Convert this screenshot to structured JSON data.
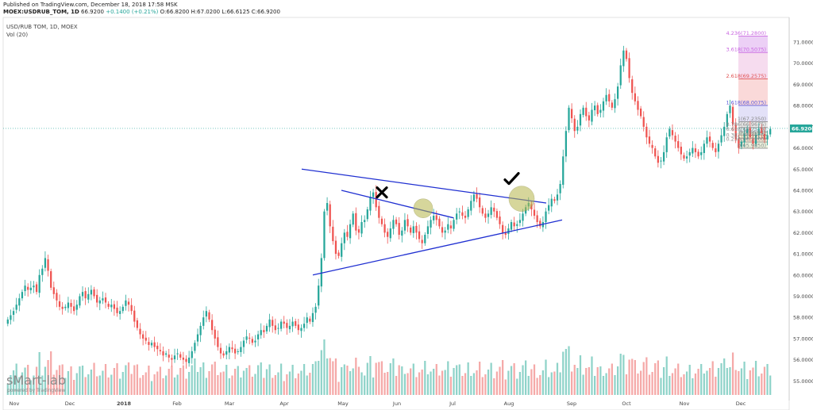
{
  "header": {
    "published": "Published on TradingView.com, December 18, 2018 17:58 MSK",
    "symbol": "MOEX:USDRUB_TOM, 1D",
    "last": "66.9200",
    "change": "+0.1400 (+0.21%)",
    "ohlc": "O:66.8200 H:67.0200 L:66.6125 C:66.9200"
  },
  "legend": {
    "title": "USD/RUB TOM, 1D, MOEX",
    "volume": "Vol (20)"
  },
  "watermark": {
    "brand": "sMart-lab",
    "powered": "powered by TradingView"
  },
  "colors": {
    "up": "#26a69a",
    "down": "#ef5350",
    "vol_up": "#8fd3c9",
    "vol_down": "#f5a9a8",
    "trend": "#1f2fd1",
    "price_line": "#26a69a",
    "fib_purple": "#c864e0",
    "fib_red": "#e05050",
    "fib_blue": "#5a5adc"
  },
  "chart_data": {
    "type": "candlestick",
    "y_ticks": [
      "71.0000",
      "70.0000",
      "69.0000",
      "68.0000",
      "67.0000",
      "66.0000",
      "65.0000",
      "64.0000",
      "63.0000",
      "62.0000",
      "61.0000",
      "60.0000",
      "59.0000",
      "58.0000",
      "57.0000",
      "56.0000",
      "55.0000"
    ],
    "y_range": [
      54.6,
      71.6
    ],
    "x_ticks": [
      "Nov",
      "Dec",
      "2018",
      "Feb",
      "Mar",
      "Apr",
      "May",
      "Jun",
      "Jul",
      "Aug",
      "Sep",
      "Oct",
      "Nov",
      "Dec"
    ],
    "last_price": "66.9200",
    "fib_levels": [
      {
        "label": "4.236(71.2800)",
        "value": 71.28
      },
      {
        "label": "3.618(70.5075)",
        "value": 70.5075
      },
      {
        "label": "2.618(69.2575)",
        "value": 69.2575
      },
      {
        "label": "1.618(68.0075)",
        "value": 68.0075
      },
      {
        "label": "1(67.2350)",
        "value": 67.235
      },
      {
        "label": "0.786(66.9675)",
        "value": 66.9675
      },
      {
        "label": "0.618(66.7575)",
        "value": 66.7575
      },
      {
        "label": "0.5(66.61)",
        "value": 66.61
      },
      {
        "label": "0.382(66.4625)",
        "value": 66.4625
      },
      {
        "label": "0.236(66.2800)",
        "value": 66.28
      },
      {
        "label": "0(65.9850)",
        "value": 65.985
      }
    ],
    "trend_lines": [
      {
        "name": "upper",
        "from": [
          "Apr",
          65.0
        ],
        "to": [
          "Aug",
          63.4
        ]
      },
      {
        "name": "lower",
        "from": [
          "Apr",
          60.0
        ],
        "to": [
          "Aug",
          62.6
        ]
      },
      {
        "name": "inner",
        "from": [
          "May",
          64.0
        ],
        "to": [
          "Jul",
          62.7
        ]
      }
    ],
    "markers": [
      {
        "type": "cross",
        "at": [
          "Jun",
          63.9
        ]
      },
      {
        "type": "check",
        "at": [
          "Aug",
          64.5
        ]
      }
    ],
    "closes": [
      57.9,
      58.1,
      58.3,
      58.6,
      58.9,
      59.2,
      59.5,
      59.3,
      59.4,
      59.5,
      59.2,
      60.0,
      60.3,
      60.8,
      60.2,
      59.4,
      59.1,
      58.8,
      58.5,
      58.4,
      58.5,
      58.7,
      58.5,
      58.3,
      58.6,
      59.0,
      59.2,
      58.9,
      59.1,
      59.3,
      59.0,
      58.7,
      58.8,
      58.9,
      58.7,
      58.5,
      58.6,
      58.4,
      58.2,
      58.3,
      58.5,
      58.8,
      58.6,
      58.3,
      57.8,
      57.5,
      57.2,
      57.0,
      56.9,
      56.7,
      56.8,
      56.6,
      56.5,
      56.4,
      56.2,
      56.3,
      56.1,
      56.0,
      56.2,
      56.3,
      56.1,
      56.0,
      55.9,
      56.1,
      56.4,
      56.8,
      57.2,
      57.6,
      58.0,
      58.3,
      57.9,
      57.4,
      57.0,
      56.6,
      56.3,
      56.2,
      56.4,
      56.6,
      56.5,
      56.3,
      56.4,
      56.6,
      56.9,
      57.1,
      57.0,
      56.8,
      56.9,
      57.2,
      57.4,
      57.3,
      57.6,
      57.9,
      57.6,
      57.4,
      57.5,
      57.8,
      57.7,
      57.5,
      57.6,
      57.8,
      57.6,
      57.4,
      57.5,
      57.7,
      58.0,
      57.8,
      58.2,
      58.5,
      59.5,
      60.8,
      63.0,
      63.4,
      62.3,
      61.6,
      61.0,
      60.9,
      61.5,
      62.0,
      61.8,
      62.4,
      62.9,
      62.1,
      62.0,
      62.5,
      62.6,
      63.1,
      63.7,
      63.9,
      63.2,
      62.7,
      62.4,
      62.0,
      61.8,
      62.2,
      62.6,
      62.4,
      61.9,
      62.1,
      62.6,
      62.3,
      62.0,
      62.3,
      62.0,
      61.7,
      61.5,
      61.9,
      62.3,
      62.6,
      62.8,
      62.6,
      62.3,
      62.0,
      62.1,
      62.4,
      62.2,
      62.6,
      62.9,
      63.0,
      62.8,
      62.7,
      63.1,
      63.5,
      63.8,
      63.6,
      63.2,
      62.9,
      62.7,
      62.9,
      63.2,
      63.0,
      62.7,
      62.4,
      62.0,
      61.9,
      62.2,
      62.5,
      62.3,
      62.4,
      62.6,
      62.9,
      63.2,
      63.4,
      63.1,
      62.8,
      62.5,
      62.3,
      62.5,
      63.0,
      63.3,
      63.6,
      63.5,
      63.8,
      64.3,
      65.6,
      66.8,
      67.9,
      67.4,
      66.8,
      67.0,
      67.6,
      67.9,
      67.5,
      67.3,
      67.8,
      68.0,
      67.6,
      67.8,
      68.2,
      68.5,
      68.2,
      67.9,
      68.3,
      68.9,
      69.9,
      70.6,
      70.2,
      69.3,
      68.6,
      68.2,
      67.8,
      67.5,
      67.0,
      66.5,
      66.2,
      66.0,
      65.6,
      65.3,
      65.4,
      65.8,
      66.5,
      66.9,
      66.6,
      66.3,
      66.0,
      65.7,
      65.5,
      65.6,
      65.8,
      66.0,
      65.8,
      65.6,
      65.8,
      66.2,
      66.5,
      66.3,
      66.0,
      65.8,
      66.2,
      66.6,
      67.0,
      67.6,
      68.0,
      67.1,
      66.4,
      66.0,
      66.3,
      66.7,
      66.9,
      66.5,
      66.2,
      66.6,
      66.9,
      66.7,
      66.4,
      66.6,
      66.9
    ]
  }
}
